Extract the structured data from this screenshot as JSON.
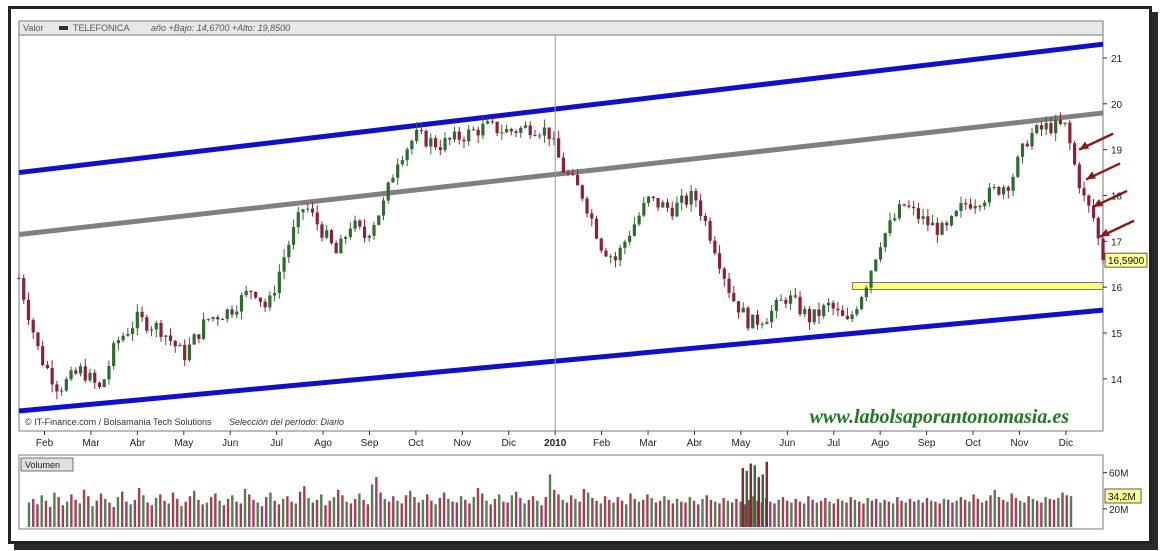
{
  "header": {
    "label": "Valor",
    "name": "TELEFONICA",
    "stats": "año +Bajo: 14,6700 +Alto: 19,8500"
  },
  "credits": {
    "source": "© IT-Finance.com / Bolsamania Tech Solutions",
    "period": "Selección del período: Diario"
  },
  "watermark": "www.labolsaporantonomasia.es",
  "colors": {
    "background": "#ffffff",
    "up": "#2f6b2f",
    "down": "#8e1f3c",
    "channel": "#1010c8",
    "midline": "#808080",
    "support": "#ffff80",
    "arrows": "#8b1a1a",
    "last_price_box": "#ffff99",
    "watermark": "#207a20"
  },
  "chart_data": [
    {
      "type": "candlestick",
      "title": "TELEFONICA",
      "xlabel": "",
      "ylabel": "",
      "ylim": [
        13.3,
        21.5
      ],
      "yticks": [
        "14",
        "15",
        "16",
        "17",
        "18",
        "19",
        "20",
        "21"
      ],
      "ytick_values": [
        14,
        15,
        16,
        17,
        18,
        19,
        20,
        21
      ],
      "x_labels": [
        "Feb",
        "Mar",
        "Abr",
        "May",
        "Jun",
        "Jul",
        "Ago",
        "Sep",
        "Oct",
        "Nov",
        "Dic",
        "2010",
        "Feb",
        "Mar",
        "Abr",
        "May",
        "Jun",
        "Jul",
        "Ago",
        "Sep",
        "Oct",
        "Nov",
        "Dic"
      ],
      "x_label_month_index": [
        1,
        2,
        3,
        4,
        5,
        6,
        7,
        8,
        9,
        10,
        11,
        12,
        13,
        14,
        15,
        16,
        17,
        18,
        19,
        20,
        21,
        22,
        23
      ],
      "x_domain_months": [
        0.45,
        23.8
      ],
      "low_of_year": 14.67,
      "high_of_year": 19.85,
      "last_price": "16,5900",
      "last_value": 16.59,
      "price_path": [
        [
          0.45,
          16.2
        ],
        [
          0.9,
          14.5
        ],
        [
          1.3,
          13.8
        ],
        [
          1.8,
          14.2
        ],
        [
          2.2,
          13.75
        ],
        [
          2.55,
          14.8
        ],
        [
          3.0,
          15.3
        ],
        [
          3.5,
          15.1
        ],
        [
          4.0,
          14.5
        ],
        [
          4.5,
          15.3
        ],
        [
          5.0,
          15.5
        ],
        [
          5.5,
          16.0
        ],
        [
          5.8,
          15.5
        ],
        [
          6.2,
          16.8
        ],
        [
          6.6,
          17.8
        ],
        [
          7.0,
          17.2
        ],
        [
          7.3,
          16.7
        ],
        [
          7.6,
          17.4
        ],
        [
          7.9,
          17.1
        ],
        [
          8.3,
          17.8
        ],
        [
          8.6,
          18.8
        ],
        [
          9.0,
          19.3
        ],
        [
          9.5,
          19.1
        ],
        [
          10.0,
          19.3
        ],
        [
          10.5,
          19.5
        ],
        [
          11.0,
          19.4
        ],
        [
          11.5,
          19.5
        ],
        [
          11.85,
          19.4
        ],
        [
          12.15,
          18.6
        ],
        [
          12.6,
          18.0
        ],
        [
          13.0,
          16.9
        ],
        [
          13.3,
          16.6
        ],
        [
          13.6,
          17.2
        ],
        [
          14.0,
          17.9
        ],
        [
          14.5,
          17.7
        ],
        [
          15.0,
          18.0
        ],
        [
          15.4,
          17.0
        ],
        [
          15.8,
          15.8
        ],
        [
          16.2,
          15.2
        ],
        [
          16.6,
          15.4
        ],
        [
          17.0,
          15.8
        ],
        [
          17.5,
          15.3
        ],
        [
          17.9,
          15.6
        ],
        [
          18.3,
          15.2
        ],
        [
          18.7,
          16.1
        ],
        [
          19.0,
          17.0
        ],
        [
          19.5,
          17.8
        ],
        [
          20.0,
          17.4
        ],
        [
          20.4,
          17.2
        ],
        [
          20.8,
          17.8
        ],
        [
          21.3,
          18.0
        ],
        [
          21.8,
          18.3
        ],
        [
          22.2,
          19.3
        ],
        [
          22.6,
          19.5
        ],
        [
          23.0,
          19.5
        ],
        [
          23.2,
          18.6
        ],
        [
          23.4,
          17.9
        ],
        [
          23.6,
          17.5
        ],
        [
          23.75,
          16.8
        ],
        [
          23.8,
          16.59
        ]
      ],
      "trendlines": [
        {
          "name": "upper channel",
          "color": "#1010c8",
          "from": [
            0.45,
            18.5
          ],
          "to": [
            23.8,
            21.3
          ]
        },
        {
          "name": "middle line",
          "color": "#808080",
          "from": [
            0.45,
            17.15
          ],
          "to": [
            23.8,
            19.8
          ]
        },
        {
          "name": "lower channel",
          "color": "#1010c8",
          "from": [
            0.45,
            13.3
          ],
          "to": [
            23.8,
            15.5
          ]
        }
      ],
      "support_band": {
        "from_month": 18.4,
        "to_month": 23.8,
        "low": 15.95,
        "high": 16.1
      },
      "arrows": 4,
      "grid": false,
      "legend": "none"
    },
    {
      "type": "bar",
      "title": "Volumen",
      "ylim": [
        0,
        75
      ],
      "yticks": [
        "20M",
        "60M"
      ],
      "ytick_values": [
        20,
        60
      ],
      "last_value_label": "34,2M",
      "last_value": 34.2,
      "series": [
        {
          "values": [
            27,
            31,
            25,
            35,
            29,
            22,
            38,
            33,
            24,
            28,
            36,
            30,
            26,
            41,
            34,
            23,
            29,
            37,
            31,
            27,
            22,
            33,
            39,
            28,
            25,
            30,
            43,
            35,
            27,
            24,
            32,
            36,
            29,
            26,
            38,
            31,
            23,
            28,
            34,
            40,
            30,
            25,
            27,
            33,
            37,
            29,
            24,
            31,
            35,
            28,
            26,
            42,
            36,
            30,
            27,
            23,
            33,
            38,
            29,
            25,
            31,
            34,
            28,
            26,
            39,
            45,
            32,
            27,
            30,
            36,
            24,
            29,
            33,
            41,
            35,
            28,
            26,
            31,
            37,
            30,
            25,
            47,
            55,
            38,
            31,
            28,
            34,
            29,
            26,
            35,
            40,
            33,
            27,
            30,
            36,
            29,
            25,
            32,
            38,
            31,
            28,
            27,
            34,
            30,
            26,
            33,
            43,
            37,
            29,
            25,
            31,
            36,
            28,
            27,
            35,
            39,
            32,
            26,
            30,
            34,
            29,
            24,
            33,
            58,
            41,
            36,
            30,
            27,
            35,
            31,
            28,
            42,
            38,
            32,
            29,
            26,
            34,
            30,
            27,
            33,
            29,
            25,
            37,
            31,
            28,
            30,
            36,
            32,
            27,
            29,
            34,
            30,
            26,
            31,
            28,
            27,
            33,
            29,
            25,
            31,
            35,
            30,
            28,
            26,
            32,
            29,
            27,
            31,
            28,
            25,
            30,
            34,
            29,
            27,
            32,
            28,
            26,
            30,
            33,
            29,
            27,
            31,
            28,
            26,
            34,
            30,
            27,
            29,
            32,
            28,
            26,
            31,
            29,
            27,
            33,
            30,
            28,
            26,
            32,
            29,
            31,
            27,
            30,
            28,
            26,
            33,
            29,
            27,
            31,
            28,
            30,
            27,
            32,
            29,
            28,
            26,
            31,
            30,
            27,
            29,
            33,
            30,
            28,
            36,
            31,
            27,
            29,
            35,
            41,
            33,
            30,
            28,
            37,
            32,
            29,
            27,
            34,
            31,
            29,
            27,
            33,
            31,
            30,
            32,
            38,
            35,
            34
          ]
        },
        {
          "name": "highlight",
          "values": [
            65,
            62,
            70,
            68,
            55,
            58,
            72
          ]
        }
      ]
    }
  ]
}
